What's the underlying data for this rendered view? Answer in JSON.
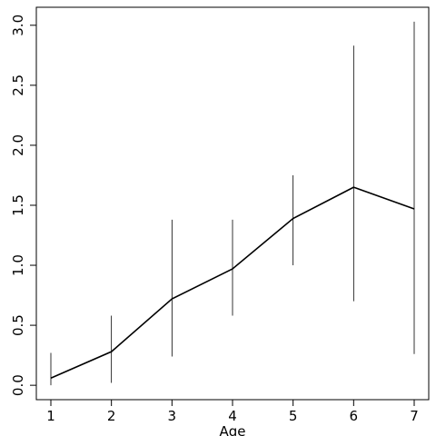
{
  "chart_data": {
    "type": "line",
    "x_label": "Age",
    "x": [
      1,
      2,
      3,
      4,
      5,
      6,
      7
    ],
    "series": [
      {
        "color": "#000000",
        "values": [
          0.06,
          0.28,
          0.72,
          0.97,
          1.39,
          1.65,
          1.47
        ],
        "lower": [
          0.0,
          0.02,
          0.24,
          0.58,
          1.0,
          0.7,
          0.26
        ],
        "upper": [
          0.27,
          0.58,
          1.38,
          1.38,
          1.75,
          2.83,
          3.03
        ]
      }
    ],
    "xlim": [
      0.76,
      7.24
    ],
    "ylim": [
      -0.12,
      3.15
    ],
    "xticks": [
      1,
      2,
      3,
      4,
      5,
      6,
      7
    ],
    "yticks": [
      {
        "value": 0,
        "label": "0.0"
      },
      {
        "value": 0.5,
        "label": "0.5"
      },
      {
        "value": 1,
        "label": "1.0"
      },
      {
        "value": 1.5,
        "label": "1.5"
      },
      {
        "value": 2,
        "label": "2.0"
      },
      {
        "value": 2.5,
        "label": "2.5"
      },
      {
        "value": 3,
        "label": "3.0"
      }
    ],
    "grid": false
  }
}
